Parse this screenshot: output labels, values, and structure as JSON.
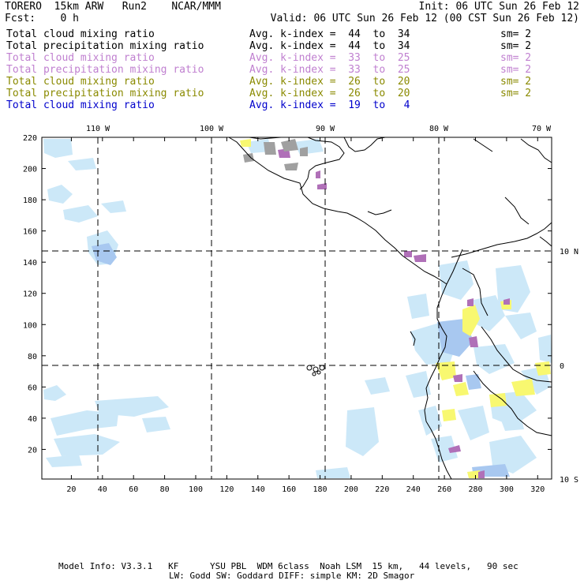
{
  "header": {
    "model": "TORERO  15km ARW   Run2    NCAR/MMM",
    "init": "Init: 06 UTC Sun 26 Feb 12",
    "fcst": "Fcst:    0 h",
    "valid": "Valid: 06 UTC Sun 26 Feb 12 (00 CST Sun 26 Feb 12)"
  },
  "legend": [
    {
      "field": "Total cloud mixing ratio",
      "range": "Avg. k-index =  44  to  34",
      "smooth": "sm= 2",
      "color": "#000000"
    },
    {
      "field": "Total precipitation mixing ratio",
      "range": "Avg. k-index =  44  to  34",
      "smooth": "sm= 2",
      "color": "#000000"
    },
    {
      "field": "Total cloud mixing ratio",
      "range": "Avg. k-index =  33  to  25",
      "smooth": "sm= 2",
      "color": "#c080d0"
    },
    {
      "field": "Total precipitation mixing ratio",
      "range": "Avg. k-index =  33  to  25",
      "smooth": "sm= 2",
      "color": "#c080d0"
    },
    {
      "field": "Total cloud mixing ratio",
      "range": "Avg. k-index =  26  to  20",
      "smooth": "sm= 2",
      "color": "#8a8a00"
    },
    {
      "field": "Total precipitation mixing ratio",
      "range": "Avg. k-index =  26  to  20",
      "smooth": "sm= 2",
      "color": "#8a8a00"
    },
    {
      "field": "Total cloud mixing ratio",
      "range": "Avg. k-index =  19  to   4",
      "smooth": "",
      "color": "#0000cc"
    }
  ],
  "map": {
    "lon_labels": [
      "110 W",
      "100 W",
      "90 W",
      "80 W",
      "70 W"
    ],
    "lat_labels": [
      "10 N",
      "0",
      "10 S"
    ],
    "y_ticks": [
      "220",
      "200",
      "180",
      "160",
      "140",
      "120",
      "100",
      "80",
      "60",
      "40",
      "20"
    ],
    "x_ticks": [
      "20",
      "40",
      "60",
      "80",
      "100",
      "120",
      "140",
      "160",
      "180",
      "200",
      "220",
      "240",
      "260",
      "280",
      "300",
      "320"
    ],
    "colors": {
      "light_blue": "#cce8f8",
      "blue": "#a8c8f0",
      "yellow": "#f8f870",
      "purple": "#b070b8",
      "gray": "#a0a0a0"
    }
  },
  "footer": {
    "line1": "Model Info: V3.3.1   KF      YSU PBL  WDM 6class  Noah LSM  15 km,   44 levels,   90 sec",
    "line2": "LW: Godd SW: Goddard DIFF: simple KM: 2D Smagor"
  }
}
